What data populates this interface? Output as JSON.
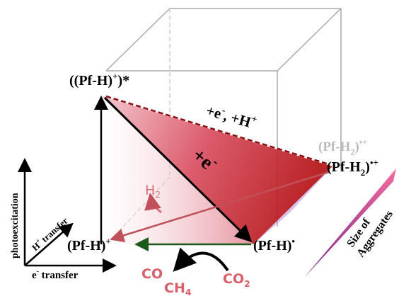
{
  "nodes": {
    "excited": [
      "((Pf-H)",
      "+",
      ")*"
    ],
    "cation": [
      "(Pf-H)",
      "+"
    ],
    "radical": [
      "(Pf-H)",
      "•"
    ],
    "hydride_gray": [
      "(Pf-H",
      "2",
      ")",
      "•+"
    ],
    "hydride": [
      "(Pf-H",
      "2",
      ")",
      "•+"
    ]
  },
  "edges": {
    "electron_proton": [
      "+e",
      "-",
      ", +H",
      "+"
    ],
    "electron": [
      "+e",
      "-"
    ],
    "hydrogen": [
      "H",
      "2"
    ]
  },
  "products": {
    "co": "CO",
    "ch4": [
      "CH",
      "4"
    ],
    "co2": [
      "CO",
      "2"
    ]
  },
  "axes": {
    "vertical": "photoexcitation",
    "diagonal": [
      "H",
      "+",
      " transfer"
    ],
    "horizontal": [
      "e",
      "-",
      " transfer"
    ]
  },
  "wedge": [
    "Size of",
    "Aggregates"
  ]
}
